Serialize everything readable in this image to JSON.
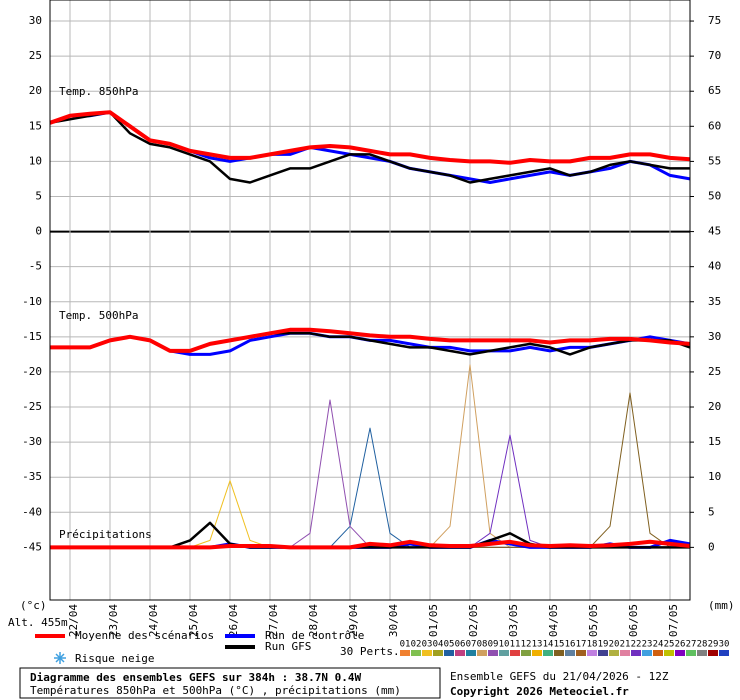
{
  "chart_data": {
    "type": "line",
    "title": "Diagramme des ensembles GEFS sur 384h : 38.7N 0.4W",
    "subtitle": "Températures 850hPa et 500hPa (°C) , précipitations (mm)",
    "run_info": "Ensemble GEFS du 21/04/2026 - 12Z",
    "copyright": "Copyright 2026 Meteociel.fr",
    "y_unit": "(°c)",
    "y2_unit": "(mm)",
    "altitude": "Alt. 455m",
    "panel_850": "Temp. 850hPa",
    "panel_500": "Temp. 500hPa",
    "panel_precip": "Précipitations",
    "snow_label": "Risque neige",
    "perturbations_label": "30 Perts.",
    "grid": true,
    "x": [
      0,
      12,
      24,
      36,
      48,
      60,
      72,
      84,
      96,
      108,
      120,
      132,
      144,
      156,
      168,
      180,
      192,
      204,
      216,
      228,
      240,
      252,
      264,
      276,
      288,
      300,
      312,
      324,
      336,
      348,
      360,
      372,
      384
    ],
    "xlim": [
      0,
      384
    ],
    "xticks": [
      {
        "value": 12,
        "label": "22/04"
      },
      {
        "value": 36,
        "label": "23/04"
      },
      {
        "value": 60,
        "label": "24/04"
      },
      {
        "value": 84,
        "label": "25/04"
      },
      {
        "value": 108,
        "label": "26/04"
      },
      {
        "value": 132,
        "label": "27/04"
      },
      {
        "value": 156,
        "label": "28/04"
      },
      {
        "value": 180,
        "label": "29/04"
      },
      {
        "value": 204,
        "label": "30/04"
      },
      {
        "value": 228,
        "label": "01/05"
      },
      {
        "value": 252,
        "label": "02/05"
      },
      {
        "value": 276,
        "label": "03/05"
      },
      {
        "value": 300,
        "label": "04/05"
      },
      {
        "value": 324,
        "label": "05/05"
      },
      {
        "value": 348,
        "label": "06/05"
      },
      {
        "value": 372,
        "label": "07/05"
      }
    ],
    "ylim": [
      -52.5,
      33
    ],
    "yticks": [
      30,
      25,
      20,
      15,
      10,
      5,
      0,
      -5,
      -10,
      -15,
      -20,
      -25,
      -30,
      -35,
      -40,
      -45
    ],
    "y2lim": [
      -7.5,
      78
    ],
    "y2ticks": [
      75,
      70,
      65,
      60,
      55,
      50,
      45,
      40,
      35,
      30,
      25,
      20,
      15,
      10,
      5,
      0
    ],
    "series": [
      {
        "name": "Run de contrôle",
        "color": "#0000ff",
        "values": [
          15.5,
          16.5,
          16.5,
          17,
          15,
          13,
          12.5,
          11.5,
          10.5,
          10,
          10.5,
          11,
          11,
          12,
          11.5,
          11,
          10.5,
          10,
          9,
          8.5,
          8,
          7.5,
          7,
          7.5,
          8,
          8.5,
          8,
          8.5,
          9,
          10,
          9.5,
          8,
          7.5
        ],
        "values_500": [
          -16.5,
          -16.5,
          -16.5,
          -15.5,
          -15,
          -15.5,
          -17,
          -17.5,
          -17.5,
          -17,
          -15.5,
          -15,
          -14.5,
          -14.5,
          -15,
          -15,
          -15.5,
          -15.5,
          -16,
          -16.5,
          -16.5,
          -17,
          -17,
          -17,
          -16.5,
          -17,
          -16.5,
          -16.5,
          -16,
          -15.5,
          -15,
          -15.5,
          -16
        ],
        "precip": [
          0,
          0,
          0,
          0,
          0,
          0,
          0,
          0,
          0,
          0.5,
          0,
          0,
          0,
          0,
          0,
          0,
          0,
          0,
          0.5,
          0,
          0,
          0,
          1,
          0.5,
          0,
          0,
          0,
          0,
          0.5,
          0,
          0,
          1,
          0.5
        ]
      },
      {
        "name": "Run GFS",
        "color": "#000000",
        "values": [
          15.5,
          16,
          16.5,
          17,
          14,
          12.5,
          12,
          11,
          10,
          7.5,
          7,
          8,
          9,
          9,
          10,
          11,
          11,
          10,
          9,
          8.5,
          8,
          7,
          7.5,
          8,
          8.5,
          9,
          8,
          8.5,
          9.5,
          10,
          9.5,
          9,
          9
        ],
        "values_500": [
          -16.5,
          -16.5,
          -16.5,
          -15.5,
          -15,
          -15.5,
          -17,
          -17,
          -16,
          -15.5,
          -15,
          -14.5,
          -14.5,
          -14.5,
          -15,
          -15,
          -15.5,
          -16,
          -16.5,
          -16.5,
          -17,
          -17.5,
          -17,
          -16.5,
          -16,
          -16.5,
          -17.5,
          -16.5,
          -16,
          -15.5,
          -15.5,
          -15.5,
          -16.5
        ],
        "precip": [
          0,
          0,
          0,
          0,
          0,
          0,
          0,
          1,
          3.5,
          0.5,
          0,
          0,
          0,
          0,
          0,
          0,
          0,
          0,
          0,
          0,
          0,
          0,
          1,
          2,
          0.5,
          0,
          0,
          0,
          0,
          0,
          0,
          0,
          0
        ]
      },
      {
        "name": "Moyenne des scénarios",
        "color": "#ff0000",
        "values": [
          15.5,
          16.5,
          16.8,
          17,
          15,
          13,
          12.5,
          11.5,
          11,
          10.5,
          10.5,
          11,
          11.5,
          12,
          12.2,
          12,
          11.5,
          11,
          11,
          10.5,
          10.2,
          10,
          10,
          9.8,
          10.2,
          10,
          10,
          10.5,
          10.5,
          11,
          11,
          10.5,
          10.3
        ],
        "values_500": [
          -16.5,
          -16.5,
          -16.5,
          -15.5,
          -15,
          -15.5,
          -17,
          -17,
          -16,
          -15.5,
          -15,
          -14.5,
          -14,
          -14,
          -14.2,
          -14.5,
          -14.8,
          -15,
          -15,
          -15.3,
          -15.5,
          -15.5,
          -15.5,
          -15.5,
          -15.5,
          -15.8,
          -15.5,
          -15.5,
          -15.3,
          -15.3,
          -15.5,
          -15.8,
          -16
        ],
        "precip": [
          0,
          0,
          0,
          0,
          0,
          0,
          0,
          0,
          0,
          0.2,
          0.2,
          0.2,
          0,
          0,
          0,
          0,
          0.5,
          0.3,
          0.8,
          0.3,
          0.2,
          0.2,
          0.5,
          0.8,
          0.3,
          0.2,
          0.3,
          0.2,
          0.3,
          0.5,
          0.8,
          0.5,
          0.2
        ]
      }
    ],
    "perturbations": [
      {
        "name": "01",
        "color": "#f08030"
      },
      {
        "name": "02",
        "color": "#80c050"
      },
      {
        "name": "03",
        "color": "#f0c020",
        "precip": [
          0,
          0,
          0,
          0,
          0,
          0,
          0,
          0,
          1,
          9.5,
          1,
          0,
          0,
          0,
          0,
          0,
          0,
          0,
          0,
          0,
          0,
          0,
          0,
          0,
          0,
          0,
          0,
          0,
          0,
          0,
          0,
          0,
          0
        ]
      },
      {
        "name": "04",
        "color": "#a0a020"
      },
      {
        "name": "05",
        "color": "#2060a0",
        "precip": [
          0,
          0,
          0,
          0,
          0,
          0,
          0,
          0,
          0,
          0,
          0,
          0,
          0,
          0,
          0,
          3,
          17,
          2,
          0,
          0,
          0,
          0,
          0,
          0,
          0,
          0,
          0,
          0,
          0,
          0,
          0,
          0,
          0
        ]
      },
      {
        "name": "06",
        "color": "#c04080"
      },
      {
        "name": "07",
        "color": "#2080a0"
      },
      {
        "name": "08",
        "color": "#d0a060",
        "precip": [
          0,
          0,
          0,
          0,
          0,
          0,
          0,
          0,
          0,
          0,
          0,
          0,
          0,
          0,
          0,
          0,
          0,
          0,
          0,
          0,
          3,
          26,
          2,
          0,
          0,
          0,
          0,
          0,
          0,
          0,
          0,
          0,
          0
        ]
      },
      {
        "name": "09",
        "color": "#9050b0",
        "precip": [
          0,
          0,
          0,
          0,
          0,
          0,
          0,
          0,
          0,
          0,
          0,
          0,
          0,
          2,
          21,
          3,
          0,
          0,
          0,
          0,
          0,
          0,
          0,
          0,
          0,
          0,
          0,
          0,
          0,
          0,
          0,
          0,
          0
        ]
      },
      {
        "name": "10",
        "color": "#60a0a0"
      },
      {
        "name": "11",
        "color": "#e04040"
      },
      {
        "name": "12",
        "color": "#80a040"
      },
      {
        "name": "13",
        "color": "#f0b000"
      },
      {
        "name": "14",
        "color": "#40b080"
      },
      {
        "name": "15",
        "color": "#806020",
        "precip": [
          0,
          0,
          0,
          0,
          0,
          0,
          0,
          0,
          0,
          0,
          0,
          0,
          0,
          0,
          0,
          0,
          0,
          0,
          0,
          0,
          0,
          0,
          0,
          0,
          0,
          0,
          0,
          0,
          3,
          22,
          2,
          0,
          0
        ]
      },
      {
        "name": "16",
        "color": "#6080a0"
      },
      {
        "name": "17",
        "color": "#a06020"
      },
      {
        "name": "18",
        "color": "#c080e0"
      },
      {
        "name": "19",
        "color": "#404090"
      },
      {
        "name": "20",
        "color": "#b0b040"
      },
      {
        "name": "21",
        "color": "#e080a0"
      },
      {
        "name": "22",
        "color": "#7030c0",
        "precip": [
          0,
          0,
          0,
          0,
          0,
          0,
          0,
          0,
          0,
          0,
          0,
          0,
          0,
          0,
          0,
          0,
          0,
          0,
          0,
          0,
          0,
          0,
          2,
          16,
          1,
          0,
          0,
          0,
          0,
          0,
          0,
          0,
          0
        ]
      },
      {
        "name": "23",
        "color": "#40a0e0"
      },
      {
        "name": "24",
        "color": "#d06010"
      },
      {
        "name": "25",
        "color": "#c0c000"
      },
      {
        "name": "26",
        "color": "#8000c0"
      },
      {
        "name": "27",
        "color": "#60c060"
      },
      {
        "name": "28",
        "color": "#808080"
      },
      {
        "name": "29",
        "color": "#a00000"
      },
      {
        "name": "30",
        "color": "#2040c0"
      }
    ]
  }
}
